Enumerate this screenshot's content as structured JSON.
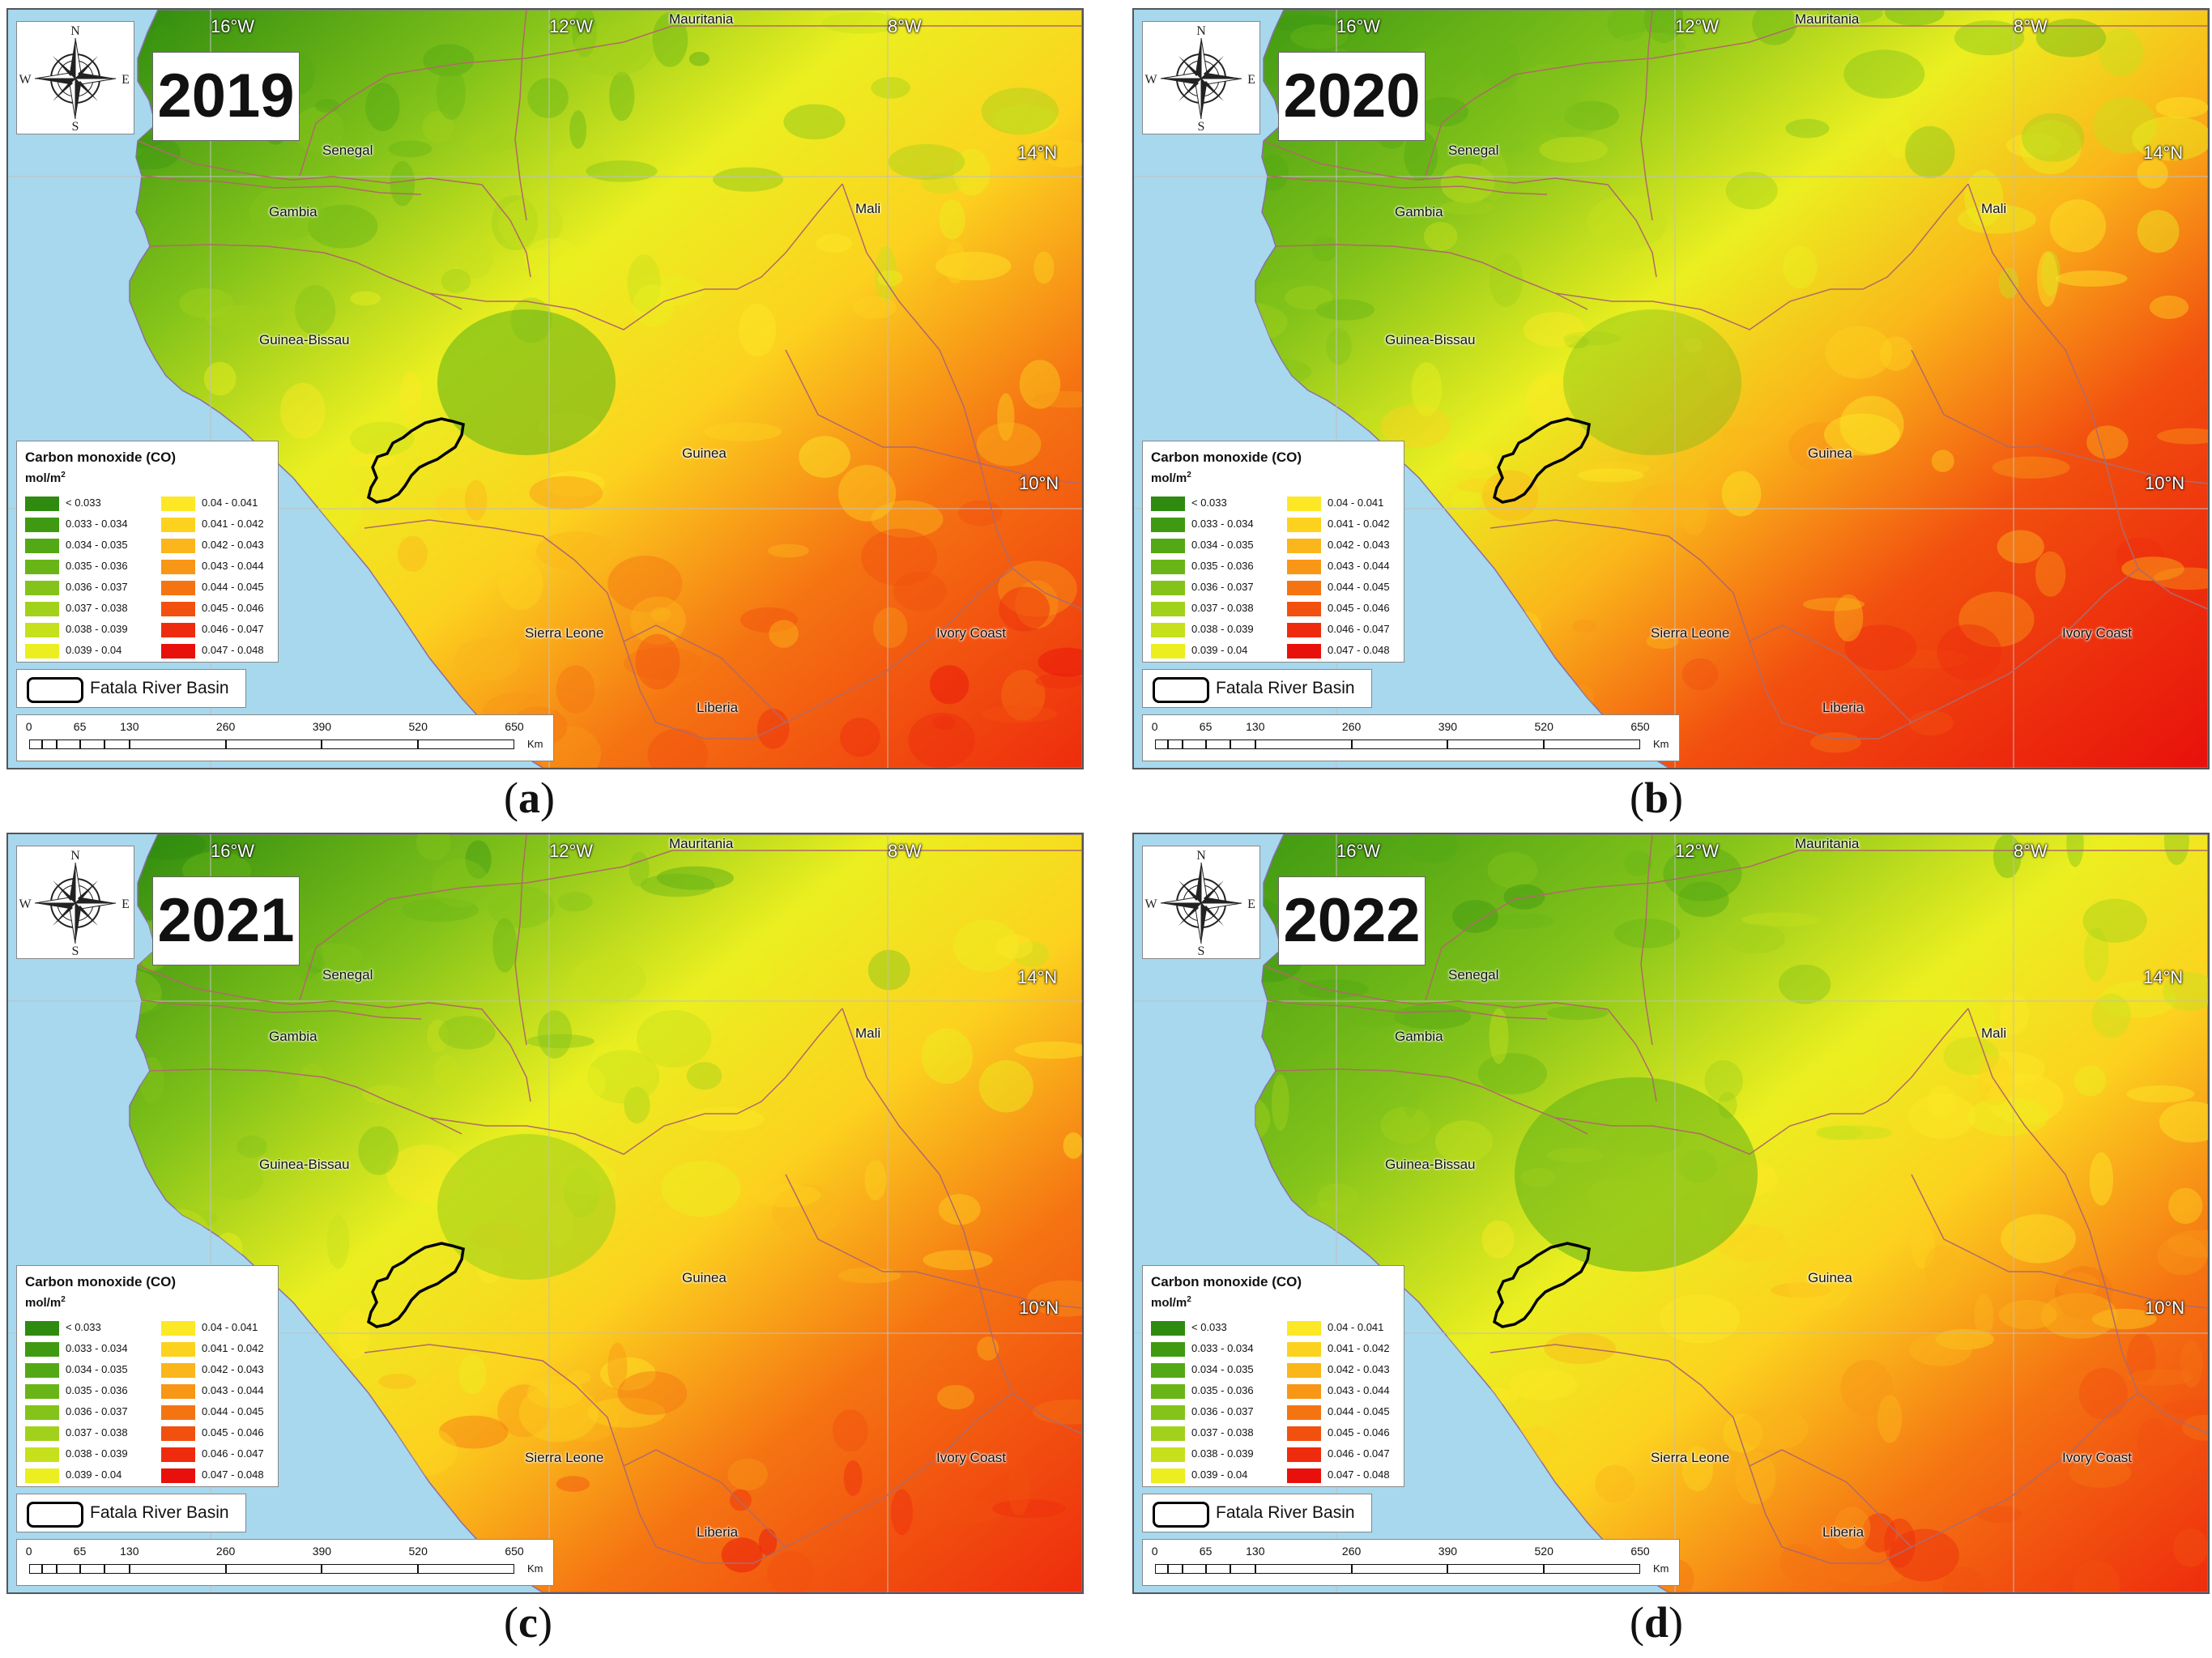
{
  "panels": [
    {
      "year": "2019",
      "caption_letter": "a",
      "variant": 0
    },
    {
      "year": "2020",
      "caption_letter": "b",
      "variant": 1
    },
    {
      "year": "2021",
      "caption_letter": "c",
      "variant": 2
    },
    {
      "year": "2022",
      "caption_letter": "d",
      "variant": 3
    }
  ],
  "compass": {
    "n": "N",
    "s": "S",
    "e": "E",
    "w": "W"
  },
  "legend": {
    "title": "Carbon monoxide (CO)",
    "unit": "mol/m",
    "unit_sup": "2",
    "classes": [
      {
        "label": "< 0.033",
        "color": "#2e8b0f"
      },
      {
        "label": "0.033 - 0.034",
        "color": "#3f9a12"
      },
      {
        "label": "0.034 - 0.035",
        "color": "#53a815"
      },
      {
        "label": "0.035 - 0.036",
        "color": "#69b517"
      },
      {
        "label": "0.036 - 0.037",
        "color": "#83c31a"
      },
      {
        "label": "0.037 - 0.038",
        "color": "#a2d11b"
      },
      {
        "label": "0.038 - 0.039",
        "color": "#c6e01c"
      },
      {
        "label": "0.039 - 0.04",
        "color": "#ebef20"
      },
      {
        "label": "0.04 - 0.041",
        "color": "#fde826"
      },
      {
        "label": "0.041 - 0.042",
        "color": "#fcd21f"
      },
      {
        "label": "0.042 - 0.043",
        "color": "#fab61a"
      },
      {
        "label": "0.043 - 0.044",
        "color": "#f89616"
      },
      {
        "label": "0.044 - 0.045",
        "color": "#f57412"
      },
      {
        "label": "0.045 - 0.046",
        "color": "#f2500f"
      },
      {
        "label": "0.046 - 0.047",
        "color": "#ee2c0d"
      },
      {
        "label": "0.047 - 0.048",
        "color": "#e8100b"
      }
    ],
    "basin_label": "Fatala River Basin"
  },
  "scalebar": {
    "ticks": [
      "0",
      "65",
      "130",
      "260",
      "390",
      "520",
      "650"
    ],
    "unit": "Km"
  },
  "coords": {
    "lon1": "16°W",
    "lon2": "12°W",
    "lon3": "8°W",
    "lat1": "14°N",
    "lat2": "10°N"
  },
  "countries": {
    "mauritania": "Mauritania",
    "senegal": "Senegal",
    "gambia": "Gambia",
    "mali": "Mali",
    "guinea_bissau": "Guinea-Bissau",
    "guinea": "Guinea",
    "sierra_leone": "Sierra Leone",
    "ivory_coast": "Ivory Coast",
    "liberia": "Liberia"
  }
}
